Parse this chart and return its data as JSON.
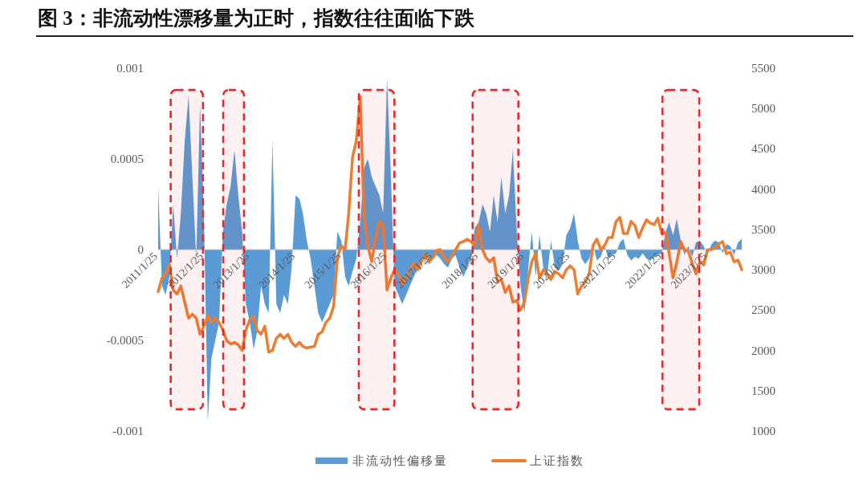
{
  "chart_data": {
    "type": "area",
    "title": "图 3：非流动性漂移量为正时，指数往往面临下跌",
    "x": [
      "2011-01-25",
      "2011-02-25",
      "2011-03-25",
      "2011-04-25",
      "2011-05-25",
      "2011-06-25",
      "2011-07-25",
      "2011-08-25",
      "2011-09-25",
      "2011-10-25",
      "2011-11-25",
      "2011-12-25",
      "2012-01-25",
      "2012-02-25",
      "2012-03-25",
      "2012-04-25",
      "2012-05-25",
      "2012-06-25",
      "2012-07-25",
      "2012-08-25",
      "2012-09-25",
      "2012-10-25",
      "2012-11-25",
      "2012-12-25",
      "2013-01-25",
      "2013-02-25",
      "2013-03-25",
      "2013-04-25",
      "2013-05-25",
      "2013-06-25",
      "2013-07-25",
      "2013-08-25",
      "2013-09-25",
      "2013-10-25",
      "2013-11-25",
      "2013-12-25",
      "2014-01-25",
      "2014-02-25",
      "2014-03-25",
      "2014-04-25",
      "2014-05-25",
      "2014-06-25",
      "2014-07-25",
      "2014-08-25",
      "2014-09-25",
      "2014-10-25",
      "2014-11-25",
      "2014-12-25",
      "2015-01-25",
      "2015-02-25",
      "2015-03-25",
      "2015-04-25",
      "2015-05-25",
      "2015-06-25",
      "2015-07-25",
      "2015-08-25",
      "2015-09-25",
      "2015-10-25",
      "2015-11-25",
      "2015-12-25",
      "2016-01-25",
      "2016-02-25",
      "2016-03-25",
      "2016-04-25",
      "2016-05-25",
      "2016-06-25",
      "2016-07-25",
      "2016-08-25",
      "2016-09-25",
      "2016-10-25",
      "2016-11-25",
      "2016-12-25",
      "2017-01-25",
      "2017-02-25",
      "2017-03-25",
      "2017-04-25",
      "2017-05-25",
      "2017-06-25",
      "2017-07-25",
      "2017-08-25",
      "2017-09-25",
      "2017-10-25",
      "2017-11-25",
      "2017-12-25",
      "2018-01-25",
      "2018-02-25",
      "2018-03-25",
      "2018-04-25",
      "2018-05-25",
      "2018-06-25",
      "2018-07-25",
      "2018-08-25",
      "2018-09-25",
      "2018-10-25",
      "2018-11-25",
      "2018-12-25",
      "2019-01-25",
      "2019-02-25",
      "2019-03-25",
      "2019-04-25",
      "2019-05-25",
      "2019-06-25",
      "2019-07-25",
      "2019-08-25",
      "2019-09-25",
      "2019-10-25",
      "2019-11-25",
      "2019-12-25",
      "2020-01-25",
      "2020-02-25",
      "2020-03-25",
      "2020-04-25",
      "2020-05-25",
      "2020-06-25",
      "2020-07-25",
      "2020-08-25",
      "2020-09-25",
      "2020-10-25",
      "2020-11-25",
      "2020-12-25",
      "2021-01-25",
      "2021-02-25",
      "2021-03-25",
      "2021-04-25",
      "2021-05-25",
      "2021-06-25",
      "2021-07-25",
      "2021-08-25",
      "2021-09-25",
      "2021-10-25",
      "2021-11-25",
      "2021-12-25",
      "2022-01-25",
      "2022-02-25",
      "2022-03-25",
      "2022-04-25",
      "2022-05-25",
      "2022-06-25",
      "2022-07-25",
      "2022-08-25",
      "2022-09-25",
      "2022-10-25",
      "2022-11-25",
      "2022-12-25",
      "2023-01-25",
      "2023-02-25",
      "2023-03-25",
      "2023-04-25",
      "2023-05-25",
      "2023-06-25",
      "2023-07-25",
      "2023-08-25",
      "2023-09-25",
      "2023-10-25"
    ],
    "series": [
      {
        "name": "非流动性偏移量",
        "color": "#5b9bd5",
        "values": [
          0.00035,
          -0.0002,
          -0.00025,
          -0.00015,
          0.00025,
          -5e-05,
          0.0002,
          0.0006,
          0.00085,
          0.0004,
          -5e-05,
          0.0008,
          0.0002,
          -0.00095,
          -0.0006,
          -0.0005,
          -0.0004,
          0.0001,
          0.00025,
          0.00035,
          0.00055,
          0.0003,
          0.0001,
          -0.0003,
          -0.0004,
          -0.00055,
          -0.00045,
          -0.0002,
          -0.0003,
          -0.00035,
          0.0006,
          -0.0003,
          -0.00035,
          -0.00025,
          -0.0003,
          -0.0001,
          0.0003,
          0.00028,
          0.0002,
          5e-05,
          -5e-05,
          -0.0002,
          -0.00035,
          -0.0004,
          -0.00035,
          -0.0003,
          -0.00025,
          0.0001,
          5e-05,
          -0.00015,
          -0.0002,
          -0.00012,
          -5e-05,
          0.00015,
          0.00045,
          0.0005,
          0.0004,
          0.00035,
          0.0003,
          0.0002,
          0.00095,
          0.0004,
          -0.0002,
          -0.00025,
          -0.0003,
          -0.00025,
          -0.0002,
          -0.00015,
          -0.0001,
          -5e-05,
          -5e-05,
          -8e-05,
          -5e-05,
          -3e-05,
          -5e-05,
          -8e-05,
          -0.0001,
          -5e-05,
          -3e-05,
          -0.0001,
          -0.00015,
          -0.0001,
          -5e-05,
          0.00012,
          0.00015,
          0.00025,
          0.0002,
          0.0001,
          0.0003,
          0.00015,
          0.0004,
          0.0002,
          0.0003,
          0.00055,
          0.0001,
          -0.0002,
          -0.00035,
          -0.0001,
          0.0001,
          -0.00015,
          8e-05,
          -0.0001,
          -0.00015,
          5e-05,
          -0.0001,
          -0.00012,
          -8e-05,
          8e-05,
          0.00012,
          0.0002,
          5e-05,
          -5e-05,
          -8e-05,
          -5e-05,
          3e-05,
          -6e-05,
          -4e-05,
          2e-05,
          -5e-05,
          -3e-05,
          -2e-05,
          4e-05,
          6e-05,
          -3e-05,
          -6e-05,
          -4e-05,
          -5e-05,
          -2e-05,
          -5e-05,
          -6e-05,
          -4e-05,
          -3e-05,
          -2e-05,
          0.0001,
          0.00015,
          8e-05,
          0.00017,
          5e-05,
          -3e-05,
          2e-05,
          -4e-05,
          4e-05,
          5e-05,
          2e-05,
          -3e-05,
          3e-05,
          5e-05,
          4e-05,
          -2e-05,
          3e-05,
          2e-05,
          -3e-05,
          4e-05,
          6e-05
        ]
      },
      {
        "name": "上证指数",
        "type": "line",
        "color": "#ed7d31",
        "axis": "y2",
        "values": [
          2730,
          2900,
          2950,
          3060,
          2750,
          2700,
          2800,
          2600,
          2400,
          2450,
          2400,
          2200,
          2300,
          2430,
          2350,
          2400,
          2350,
          2250,
          2120,
          2080,
          2100,
          2070,
          2000,
          2250,
          2380,
          2420,
          2250,
          2200,
          2300,
          1980,
          2000,
          2150,
          2200,
          2150,
          2200,
          2100,
          2050,
          2100,
          2050,
          2030,
          2040,
          2050,
          2200,
          2230,
          2350,
          2400,
          2550,
          3150,
          3300,
          3250,
          3700,
          4400,
          4600,
          5150,
          3700,
          3300,
          3100,
          3400,
          3600,
          3550,
          2750,
          2900,
          3000,
          2950,
          2830,
          2900,
          3000,
          3080,
          3000,
          3100,
          3200,
          3100,
          3150,
          3240,
          3250,
          3150,
          3100,
          3180,
          3250,
          3330,
          3350,
          3380,
          3350,
          3300,
          3550,
          3250,
          3150,
          3100,
          3150,
          2850,
          2880,
          2720,
          2800,
          2600,
          2620,
          2500,
          2600,
          2900,
          3100,
          3200,
          2900,
          3000,
          2950,
          2880,
          2980,
          2950,
          2900,
          3000,
          3050,
          3000,
          2700,
          2800,
          2850,
          2950,
          3300,
          3380,
          3250,
          3300,
          3400,
          3400,
          3600,
          3650,
          3450,
          3450,
          3600,
          3550,
          3400,
          3520,
          3620,
          3580,
          3560,
          3640,
          3450,
          3460,
          3200,
          2900,
          3100,
          3350,
          3250,
          3230,
          3080,
          2950,
          3100,
          3060,
          3250,
          3250,
          3270,
          3320,
          3350,
          3200,
          3220,
          3100,
          3120,
          3000
        ]
      }
    ],
    "xlim": [
      "2011-01-25",
      "2023-10-25"
    ],
    "xticks": [
      {
        "value": "2011-01-25",
        "label": "2011/1/25"
      },
      {
        "value": "2012-01-25",
        "label": "2012/1/25"
      },
      {
        "value": "2013-01-25",
        "label": "2013/1/25"
      },
      {
        "value": "2014-01-25",
        "label": "2014/1/25"
      },
      {
        "value": "2015-01-25",
        "label": "2015/1/25"
      },
      {
        "value": "2016-01-25",
        "label": "2016/1/25"
      },
      {
        "value": "2017-01-25",
        "label": "2017/1/25"
      },
      {
        "value": "2018-01-25",
        "label": "2018/1/25"
      },
      {
        "value": "2019-01-25",
        "label": "2019/1/25"
      },
      {
        "value": "2020-01-25",
        "label": "2020/1/25"
      },
      {
        "value": "2021-01-25",
        "label": "2021/1/25"
      },
      {
        "value": "2022-01-25",
        "label": "2022/1/25"
      },
      {
        "value": "2023-01-25",
        "label": "2023/1/25"
      }
    ],
    "ylim": [
      -0.001,
      0.001
    ],
    "yticks": [
      -0.001,
      -0.0005,
      0,
      0.0005,
      0.001
    ],
    "y2lim": [
      1000,
      5500
    ],
    "y2ticks": [
      1000,
      1500,
      2000,
      2500,
      3000,
      3500,
      4000,
      4500,
      5000,
      5500
    ],
    "bands": [
      {
        "axis": "x",
        "from": "2011-05-05",
        "to": "2012-01-18",
        "color": "#e8282b"
      },
      {
        "axis": "x",
        "from": "2012-06-27",
        "to": "2012-12-10",
        "color": "#e8282b"
      },
      {
        "axis": "x",
        "from": "2015-06-14",
        "to": "2016-03-24",
        "color": "#e8282b"
      },
      {
        "axis": "x",
        "from": "2017-12-08",
        "to": "2018-12-08",
        "color": "#e8282b"
      },
      {
        "axis": "x",
        "from": "2022-01-30",
        "to": "2022-11-20",
        "color": "#e8282b"
      }
    ],
    "legend": "bottom"
  }
}
